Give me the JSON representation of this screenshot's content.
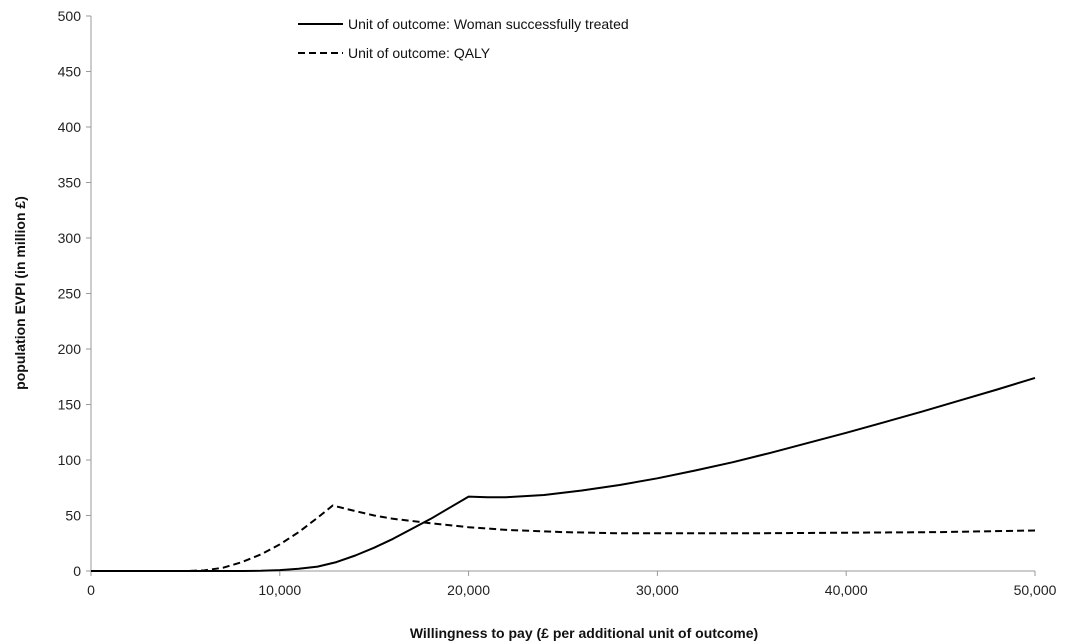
{
  "chart_data": {
    "type": "line",
    "title": "",
    "xlabel": "Willingness to pay (£ per additional unit of outcome)",
    "ylabel": "population EVPI (in million £)",
    "xlim": [
      0,
      50000
    ],
    "ylim": [
      0,
      500
    ],
    "x_ticks": [
      0,
      10000,
      20000,
      30000,
      40000,
      50000
    ],
    "x_tick_labels": [
      "0",
      "10,000",
      "20,000",
      "30,000",
      "40,000",
      "50,000"
    ],
    "y_ticks": [
      0,
      50,
      100,
      150,
      200,
      250,
      300,
      350,
      400,
      450,
      500
    ],
    "y_tick_labels": [
      "0",
      "50",
      "100",
      "150",
      "200",
      "250",
      "300",
      "350",
      "400",
      "450",
      "500"
    ],
    "grid": false,
    "legend_position": "top-center",
    "series": [
      {
        "name": "Unit of outcome: Woman successfully treated",
        "style": "solid",
        "color": "#000000",
        "x": [
          0,
          8000,
          9000,
          10000,
          11000,
          12000,
          13000,
          14000,
          15000,
          16000,
          17000,
          18000,
          19000,
          20000,
          21000,
          22000,
          24000,
          26000,
          28000,
          30000,
          32000,
          34000,
          36000,
          38000,
          40000,
          42000,
          44000,
          46000,
          48000,
          50000
        ],
        "y": [
          0,
          0,
          0.2,
          0.8,
          2,
          4,
          8,
          14,
          21,
          29,
          38,
          47,
          57,
          67,
          66.5,
          66.5,
          68.5,
          72.5,
          77.5,
          83.5,
          90.5,
          98,
          106.5,
          115.5,
          124.5,
          134,
          143.5,
          153.5,
          163.5,
          174
        ]
      },
      {
        "name": "Unit of outcome: QALY",
        "style": "dashed",
        "color": "#000000",
        "x": [
          0,
          5000,
          6000,
          7000,
          8000,
          9000,
          10000,
          11000,
          12000,
          12800,
          14000,
          15000,
          16000,
          17000,
          18000,
          20000,
          22000,
          25000,
          28000,
          30000,
          35000,
          40000,
          45000,
          50000
        ],
        "y": [
          0,
          0,
          0.5,
          3,
          8,
          15,
          24,
          35,
          48,
          59,
          54,
          50,
          47,
          45,
          43,
          39.5,
          37,
          35,
          34,
          34,
          34,
          34.5,
          35,
          36.5
        ]
      }
    ]
  }
}
